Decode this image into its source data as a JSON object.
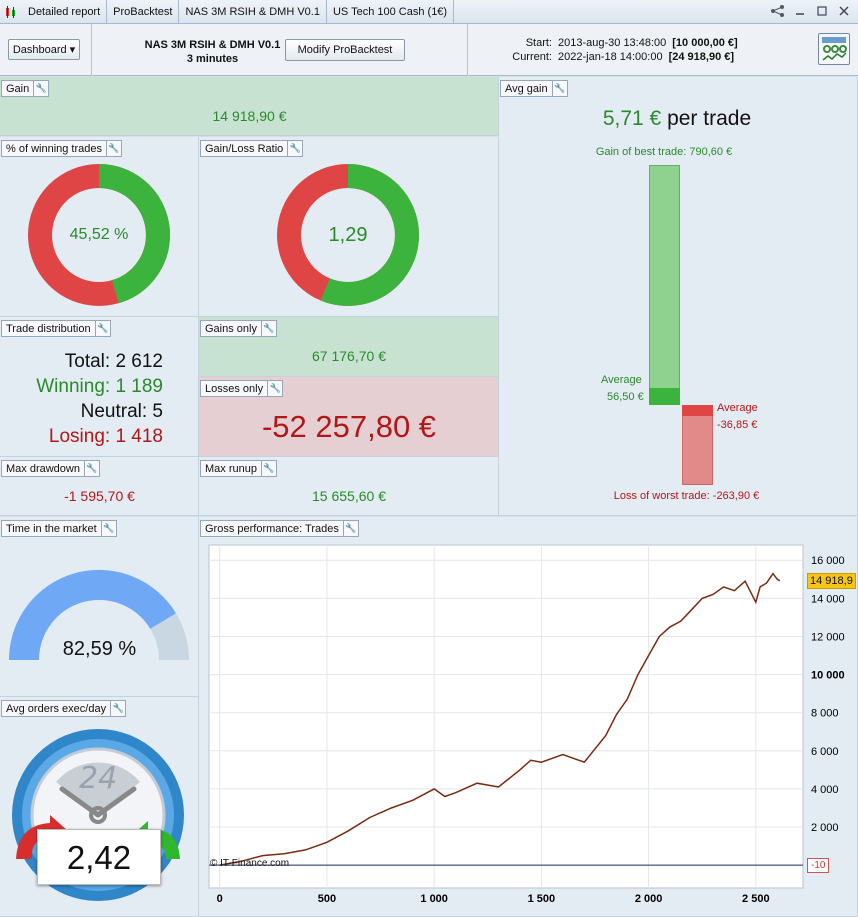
{
  "colors": {
    "green": "#3cb33c",
    "red": "#e04545",
    "gain_text": "#2a8a2a",
    "loss_text": "#b01818",
    "bar_green": "#8fd28f",
    "bar_red": "#e28a8a",
    "gauge_blue": "#6fa8f5"
  },
  "titlebar": {
    "tabs": [
      "Detailed report",
      "ProBacktest",
      "NAS 3M RSIH & DMH V0.1",
      "US Tech 100 Cash (1€)"
    ],
    "icons": [
      "share-icon",
      "minimize-icon",
      "maximize-icon",
      "close-icon"
    ]
  },
  "toolbar": {
    "dashboard_label": "Dashboard",
    "strategy_name": "NAS 3M RSIH & DMH V0.1",
    "timeframe": "3 minutes",
    "modify_label": "Modify ProBacktest",
    "start_label": "Start:",
    "start_date": "2013-aug-30 13:48:00",
    "start_value": "[10 000,00 €]",
    "current_label": "Current:",
    "current_date": "2022-jan-18 14:00:00",
    "current_value": "[24 918,90 €]"
  },
  "gain": {
    "title": "Gain",
    "value": "14 918,90 €"
  },
  "winning_pct": {
    "title": "% of winning trades",
    "value": "45,52 %",
    "fraction": 0.4552
  },
  "gl_ratio": {
    "title": "Gain/Loss Ratio",
    "value": "1,29",
    "fraction": 0.563
  },
  "trade_distribution": {
    "title": "Trade distribution",
    "total_label": "Total:",
    "total": "2 612",
    "winning_label": "Winning:",
    "winning": "1 189",
    "neutral_label": "Neutral:",
    "neutral": "5",
    "losing_label": "Losing:",
    "losing": "1 418"
  },
  "gains_only": {
    "title": "Gains only",
    "value": "67 176,70 €"
  },
  "losses_only": {
    "title": "Losses only",
    "value": "-52 257,80 €"
  },
  "max_drawdown": {
    "title": "Max drawdown",
    "value": "-1 595,70 €"
  },
  "max_runup": {
    "title": "Max runup",
    "value": "15 655,60 €"
  },
  "avg_gain": {
    "title": "Avg gain",
    "value": "5,71 €",
    "suffix": "per trade",
    "best_label": "Gain of best trade: 790,60 €",
    "best": 790.6,
    "avg_win_label": "Average",
    "avg_win_value": "56,50 €",
    "avg_win": 56.5,
    "avg_loss_label": "Average",
    "avg_loss_value": "-36,85 €",
    "avg_loss": -36.85,
    "worst_label": "Loss of worst trade: -263,90 €",
    "worst": -263.9
  },
  "time_in_market": {
    "title": "Time in the market",
    "value": "82,59 %",
    "fraction": 0.8259
  },
  "avg_orders": {
    "title": "Avg orders exec/day",
    "value": "2,42",
    "clock_label": "24"
  },
  "chart_data": {
    "type": "line",
    "title": "Gross performance: Trades",
    "x_ticks": [
      "0",
      "500",
      "1 000",
      "1 500",
      "2 000",
      "2 500"
    ],
    "y_ticks": [
      "2 000",
      "4 000",
      "6 000",
      "8 000",
      "10 000",
      "12 000",
      "14 000",
      "16 000"
    ],
    "xlim": [
      -50,
      2720
    ],
    "ylim": [
      -1200,
      16800
    ],
    "last_label": "14 918,9",
    "zero_label": "-10",
    "copyright": "© IT-Finance.com",
    "series": [
      {
        "x": [
          0,
          100,
          200,
          300,
          400,
          500,
          600,
          700,
          800,
          900,
          1000,
          1050,
          1100,
          1200,
          1300,
          1400,
          1450,
          1500,
          1600,
          1700,
          1800,
          1850,
          1900,
          1950,
          2000,
          2050,
          2100,
          2150,
          2200,
          2250,
          2300,
          2350,
          2400,
          2450,
          2500,
          2520,
          2550,
          2580,
          2600,
          2612
        ],
        "y": [
          0,
          200,
          500,
          600,
          800,
          1200,
          1800,
          2500,
          3000,
          3400,
          4000,
          3600,
          3800,
          4300,
          4100,
          5000,
          5500,
          5400,
          5800,
          5400,
          6800,
          7900,
          8700,
          10000,
          11000,
          12000,
          12500,
          12800,
          13400,
          14000,
          14200,
          14600,
          14400,
          14900,
          13800,
          14600,
          14800,
          15300,
          15000,
          14919
        ]
      }
    ]
  }
}
